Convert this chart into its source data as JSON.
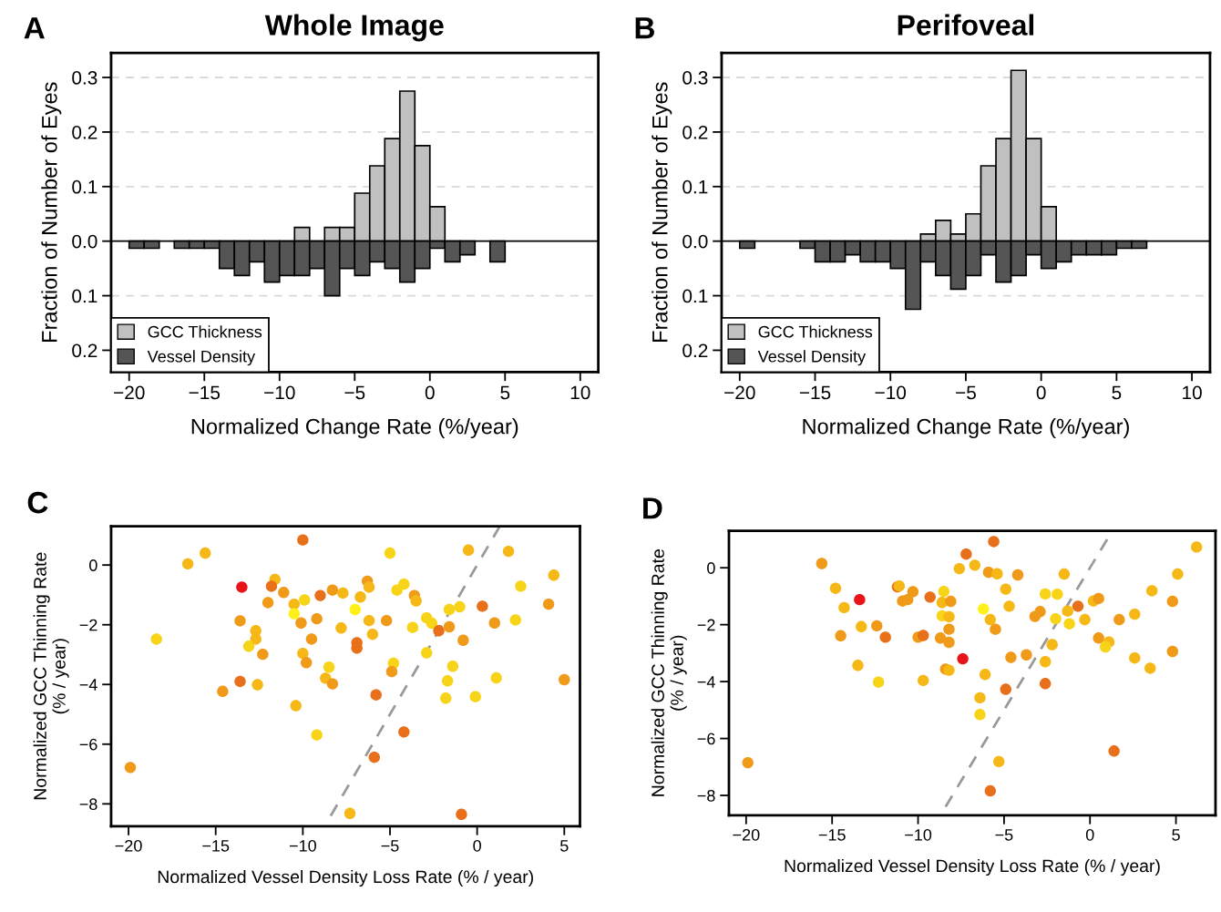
{
  "chart_data": [
    {
      "type": "histogram",
      "title": "Whole Image",
      "xlabel": "Normalized Change Rate (%/year)",
      "ylabel": "Fraction of Number of Eyes",
      "annotations": [
        "A"
      ],
      "bins": [
        -20,
        -19,
        -18,
        -17,
        -16,
        -15,
        -14,
        -13,
        -12,
        -11,
        -10,
        -9,
        -8,
        -7,
        -6,
        -5,
        -4,
        -3,
        -2,
        -1,
        0,
        1,
        2,
        3,
        4,
        5
      ],
      "series": [
        {
          "name": "GCC Thickness",
          "color": "#c0c0c0",
          "values": [
            null,
            null,
            null,
            null,
            null,
            null,
            null,
            null,
            null,
            null,
            null,
            0.025,
            null,
            0.025,
            0.025,
            0.088,
            0.138,
            0.188,
            0.275,
            0.175,
            0.063,
            null,
            null,
            null,
            null
          ]
        },
        {
          "name": "Vessel Density",
          "color": "#555555",
          "values": [
            -0.013,
            -0.013,
            null,
            -0.013,
            -0.013,
            -0.013,
            -0.05,
            -0.063,
            -0.038,
            -0.075,
            -0.063,
            -0.063,
            -0.05,
            -0.1,
            -0.05,
            -0.063,
            -0.038,
            -0.05,
            -0.075,
            -0.05,
            -0.013,
            -0.038,
            -0.025,
            null,
            -0.038
          ]
        }
      ],
      "xlim": [
        -21.2,
        11.2
      ],
      "ylim": [
        -0.24,
        0.345
      ],
      "xticks": [
        -20,
        -15,
        -10,
        -5,
        0,
        5,
        10
      ],
      "yticks": [
        {
          "value": -0.2,
          "label": "0.2"
        },
        {
          "value": -0.1,
          "label": "0.1"
        },
        {
          "value": 0,
          "label": "0.0"
        },
        0.1,
        0.2,
        0.3
      ],
      "ref_lines": [
        {
          "axis": "y",
          "value": 0.3,
          "color": "#d9d9d9",
          "line_style": "dashed"
        },
        {
          "axis": "y",
          "value": 0.2,
          "color": "#d9d9d9",
          "line_style": "dashed"
        },
        {
          "axis": "y",
          "value": 0.1,
          "color": "#d9d9d9",
          "line_style": "dashed"
        },
        {
          "axis": "y",
          "value": -0.1,
          "color": "#d9d9d9",
          "line_style": "dashed"
        },
        {
          "axis": "y",
          "value": 0,
          "color": "#000000",
          "line_style": "solid"
        }
      ],
      "legend": "bottom left"
    },
    {
      "type": "histogram",
      "title": "Perifoveal",
      "xlabel": "Normalized Change Rate (%/year)",
      "ylabel": "Fraction of Number of Eyes",
      "annotations": [
        "B"
      ],
      "bins": [
        -20,
        -19,
        -18,
        -17,
        -16,
        -15,
        -14,
        -13,
        -12,
        -11,
        -10,
        -9,
        -8,
        -7,
        -6,
        -5,
        -4,
        -3,
        -2,
        -1,
        0,
        1,
        2,
        3,
        4,
        5,
        6,
        7
      ],
      "series": [
        {
          "name": "GCC Thickness",
          "color": "#c0c0c0",
          "values": [
            null,
            null,
            null,
            null,
            null,
            null,
            null,
            null,
            null,
            null,
            null,
            null,
            0.013,
            0.038,
            0.013,
            0.05,
            0.138,
            0.188,
            0.313,
            0.188,
            0.063,
            null,
            null,
            null,
            null,
            null,
            null
          ]
        },
        {
          "name": "Vessel Density",
          "color": "#555555",
          "values": [
            -0.013,
            null,
            null,
            null,
            -0.013,
            -0.038,
            -0.038,
            -0.025,
            -0.038,
            -0.038,
            -0.05,
            -0.125,
            -0.038,
            -0.063,
            -0.088,
            -0.063,
            -0.025,
            -0.075,
            -0.063,
            -0.025,
            -0.05,
            -0.038,
            -0.025,
            -0.025,
            -0.025,
            -0.013,
            -0.013
          ]
        }
      ],
      "xlim": [
        -21.2,
        11.2
      ],
      "ylim": [
        -0.24,
        0.345
      ],
      "xticks": [
        -20,
        -15,
        -10,
        -5,
        0,
        5,
        10
      ],
      "yticks": [
        {
          "value": -0.2,
          "label": "0.2"
        },
        {
          "value": -0.1,
          "label": "0.1"
        },
        {
          "value": 0,
          "label": "0.0"
        },
        0.1,
        0.2,
        0.3
      ],
      "ref_lines": [
        {
          "axis": "y",
          "value": 0.3,
          "color": "#d9d9d9",
          "line_style": "dashed"
        },
        {
          "axis": "y",
          "value": 0.2,
          "color": "#d9d9d9",
          "line_style": "dashed"
        },
        {
          "axis": "y",
          "value": 0.1,
          "color": "#d9d9d9",
          "line_style": "dashed"
        },
        {
          "axis": "y",
          "value": -0.1,
          "color": "#d9d9d9",
          "line_style": "dashed"
        },
        {
          "axis": "y",
          "value": 0,
          "color": "#000000",
          "line_style": "solid"
        }
      ],
      "legend": "bottom left"
    },
    {
      "type": "scatter",
      "xlabel": "Normalized Vessel Density Loss Rate (% / year)",
      "ylabel": "Normalized GCC Thinning Rate\n(% / year)",
      "annotations": [
        "C"
      ],
      "marker": "circle",
      "series": [
        {
          "x": [
            -10.0,
            -15.6,
            -16.6,
            -5.0,
            -0.5,
            1.8,
            4.4,
            2.5,
            4.1,
            -13.5,
            -11.6,
            -11.8,
            -11.1,
            -12.0,
            -10.5,
            -10.5,
            -9.9,
            -9.0,
            -8.3,
            -7.7,
            -6.3,
            -6.2,
            -6.7,
            -7.0,
            -4.6,
            -4.2,
            -3.6,
            -3.5,
            -1.6,
            -1.0,
            0.3,
            -13.6,
            -12.7,
            -12.7,
            -13.1,
            -12.3,
            -10.1,
            -9.2,
            -9.5,
            -7.8,
            -6.9,
            -6.9,
            -6.2,
            -6.0,
            -5.2,
            -3.7,
            -2.9,
            -2.6,
            -2.2,
            -1.6,
            -0.8,
            1.0,
            2.2,
            -10.0,
            -9.8,
            -8.5,
            -8.7,
            -8.3,
            -4.8,
            -4.9,
            -2.9,
            -1.4,
            -1.7,
            -1.8,
            -0.1,
            1.1,
            5.0,
            -13.6,
            -12.6,
            -14.6,
            -5.8,
            -10.4,
            -18.4,
            -9.2,
            -4.2,
            -5.9,
            -19.9,
            -7.3,
            -0.9
          ],
          "values": [
            0.84,
            0.4,
            0.04,
            0.4,
            0.5,
            0.46,
            -0.34,
            -0.71,
            -1.31,
            -0.74,
            -0.48,
            -0.71,
            -0.92,
            -1.26,
            -1.31,
            -1.63,
            -1.17,
            -1.02,
            -0.84,
            -0.94,
            -0.54,
            -0.74,
            -1.07,
            -1.49,
            -0.84,
            -0.64,
            -1.02,
            -1.2,
            -1.49,
            -1.4,
            -1.38,
            -1.87,
            -2.2,
            -2.48,
            -2.72,
            -2.99,
            -1.94,
            -1.8,
            -2.48,
            -2.11,
            -2.6,
            -2.78,
            -1.86,
            -2.32,
            -1.86,
            -2.09,
            -1.77,
            -1.95,
            -2.2,
            -2.07,
            -2.52,
            -1.94,
            -1.84,
            -2.96,
            -3.27,
            -3.42,
            -3.79,
            -3.98,
            -3.29,
            -3.57,
            -2.94,
            -3.39,
            -3.88,
            -4.46,
            -4.41,
            -3.78,
            -3.84,
            -3.9,
            -4.01,
            -4.23,
            -4.35,
            -4.71,
            -2.48,
            -5.69,
            -5.59,
            -6.44,
            -6.78,
            -8.32,
            -8.35
          ],
          "colors": [
            "#e8701a",
            "#f5b816",
            "#f5b816",
            "#f8d418",
            "#f5b816",
            "#f5b816",
            "#f5b816",
            "#f8d418",
            "#f09a1a",
            "#e8141a",
            "#f5b816",
            "#e8701a",
            "#f09a1a",
            "#f09a1a",
            "#f5b816",
            "#fff01a",
            "#f8d418",
            "#e8701a",
            "#f09a1a",
            "#f5b816",
            "#f09a1a",
            "#f5b816",
            "#f5b816",
            "#fff01a",
            "#f8d418",
            "#f8d418",
            "#f09a1a",
            "#f5b816",
            "#f8d418",
            "#f8d418",
            "#e8701a",
            "#f09a1a",
            "#f5b816",
            "#f5b816",
            "#f8d418",
            "#f09a1a",
            "#f09a1a",
            "#f09a1a",
            "#f09a1a",
            "#f5b816",
            "#e8701a",
            "#e8701a",
            "#f5b816",
            "#f5b816",
            "#f09a1a",
            "#f8d418",
            "#f8d418",
            "#f8d418",
            "#e8701a",
            "#f09a1a",
            "#f09a1a",
            "#f09a1a",
            "#f8d418",
            "#f5b816",
            "#f09a1a",
            "#f8d418",
            "#f5b816",
            "#f09a1a",
            "#f8d418",
            "#f09a1a",
            "#f8d418",
            "#f8d418",
            "#f8d418",
            "#f8d418",
            "#f8d418",
            "#f8d418",
            "#f09a1a",
            "#e8701a",
            "#f5b816",
            "#f09a1a",
            "#e8701a",
            "#f5b816",
            "#f8d418",
            "#f8d418",
            "#e8701a",
            "#e8701a",
            "#f09a1a",
            "#f5b816",
            "#e8701a"
          ]
        },
        {
          "type": "line",
          "x": [
            -8.4,
            1.3
          ],
          "values": [
            -8.4,
            1.3
          ],
          "color": "#999999",
          "line_style": "dashed",
          "marker": "none"
        }
      ],
      "xlim": [
        -21,
        5.9
      ],
      "ylim": [
        -8.75,
        1.3
      ],
      "xticks": [
        -20,
        -15,
        -10,
        -5,
        0,
        5
      ],
      "yticks": [
        -8,
        -6,
        -4,
        -2,
        0
      ]
    },
    {
      "type": "scatter",
      "xlabel": "Normalized Vessel Density Loss Rate (% / year)",
      "ylabel": "Normalized GCC Thinning Rate\n(% / year)",
      "annotations": [
        "D"
      ],
      "marker": "circle",
      "series": [
        {
          "x": [
            -5.6,
            -7.2,
            6.2,
            -15.6,
            -7.6,
            -6.7,
            -5.9,
            -5.4,
            -4.2,
            -1.5,
            5.1,
            -14.8,
            -13.4,
            -14.3,
            -11.2,
            -11.1,
            -10.3,
            -10.9,
            -10.6,
            -9.3,
            -8.5,
            -8.6,
            -8.1,
            -8.6,
            -8.2,
            -8.2,
            -8.7,
            -8.2,
            -6.2,
            -5.8,
            -5.5,
            -4.9,
            -4.7,
            -2.6,
            -1.9,
            -0.7,
            -3.2,
            -2.9,
            -1.3,
            -2.0,
            -1.2,
            -0.3,
            0.2,
            0.5,
            1.7,
            2.6,
            3.6,
            4.8,
            -13.3,
            -14.5,
            -12.4,
            -11.9,
            -10.0,
            -9.7,
            -7.4,
            -2.2,
            0.5,
            1.1,
            0.9,
            -4.6,
            -3.7,
            -2.6,
            2.6,
            3.5,
            4.8,
            -13.5,
            -12.3,
            -9.7,
            -8.4,
            -8.2,
            -6.1,
            -4.9,
            -2.6,
            -6.4,
            -6.4,
            -5.3,
            1.4,
            -19.9,
            -5.8
          ],
          "values": [
            0.92,
            0.48,
            0.73,
            0.15,
            -0.03,
            0.09,
            -0.16,
            -0.21,
            -0.25,
            -0.22,
            -0.22,
            -0.72,
            -1.12,
            -1.4,
            -0.67,
            -0.64,
            -0.84,
            -1.17,
            -1.12,
            -1.03,
            -0.83,
            -1.22,
            -1.18,
            -1.69,
            -1.72,
            -2.16,
            -2.47,
            -2.62,
            -1.45,
            -1.82,
            -2.16,
            -0.75,
            -1.35,
            -0.92,
            -0.93,
            -1.35,
            -1.71,
            -1.54,
            -1.52,
            -1.79,
            -1.97,
            -1.82,
            -1.17,
            -1.08,
            -1.82,
            -1.63,
            -0.81,
            -1.18,
            -2.07,
            -2.39,
            -2.04,
            -2.44,
            -2.44,
            -2.38,
            -3.2,
            -2.7,
            -2.47,
            -2.61,
            -2.78,
            -3.15,
            -3.06,
            -3.3,
            -3.17,
            -3.53,
            -2.94,
            -3.43,
            -4.02,
            -3.96,
            -3.56,
            -3.6,
            -3.75,
            -4.27,
            -4.07,
            -4.57,
            -5.16,
            -6.81,
            -6.44,
            -6.85,
            -7.84
          ],
          "colors": [
            "#e8701a",
            "#e8701a",
            "#f5b816",
            "#f09a1a",
            "#f5b816",
            "#f5b816",
            "#f09a1a",
            "#f5b816",
            "#f09a1a",
            "#f5b816",
            "#f5b816",
            "#f5b816",
            "#e8141a",
            "#f5b816",
            "#e8701a",
            "#f5b816",
            "#f09a1a",
            "#f09a1a",
            "#f09a1a",
            "#e8701a",
            "#f8d418",
            "#f5b816",
            "#f09a1a",
            "#f8d418",
            "#f5b816",
            "#f09a1a",
            "#f09a1a",
            "#f09a1a",
            "#fff01a",
            "#f5b816",
            "#f09a1a",
            "#f5b816",
            "#f5b816",
            "#f8d418",
            "#f8d418",
            "#e8701a",
            "#f09a1a",
            "#f09a1a",
            "#f5b816",
            "#f8d418",
            "#f8d418",
            "#f5b816",
            "#f5b816",
            "#f09a1a",
            "#f09a1a",
            "#f5b816",
            "#f5b816",
            "#f09a1a",
            "#f5b816",
            "#f09a1a",
            "#f09a1a",
            "#e8701a",
            "#f09a1a",
            "#e8701a",
            "#e8141a",
            "#f5b816",
            "#f09a1a",
            "#f5b816",
            "#f8d418",
            "#f09a1a",
            "#f09a1a",
            "#f5b816",
            "#f5b816",
            "#f5b816",
            "#f09a1a",
            "#f5b816",
            "#f8d418",
            "#f5b816",
            "#f09a1a",
            "#f5b816",
            "#f5b816",
            "#e8701a",
            "#e8701a",
            "#f5b816",
            "#f8d418",
            "#f5b816",
            "#e8701a",
            "#f09a1a",
            "#e8701a"
          ]
        },
        {
          "type": "line",
          "x": [
            -8.4,
            1.0
          ],
          "values": [
            -8.4,
            1.0
          ],
          "color": "#999999",
          "line_style": "dashed",
          "marker": "none"
        }
      ],
      "xlim": [
        -21,
        7.3
      ],
      "ylim": [
        -8.7,
        1.3
      ],
      "xticks": [
        -20,
        -15,
        -10,
        -5,
        0,
        5
      ],
      "yticks": [
        -8,
        -6,
        -4,
        -2,
        0
      ]
    }
  ]
}
